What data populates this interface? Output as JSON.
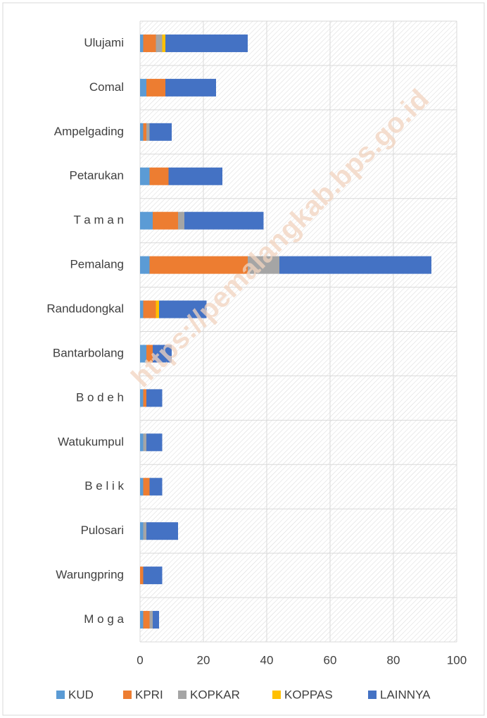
{
  "chart_data": {
    "type": "bar",
    "orientation": "horizontal",
    "stacked": true,
    "categories": [
      "Ulujami",
      "Comal",
      "Ampelgading",
      "Petarukan",
      "T a m a n",
      "Pemalang",
      "Randudongkal",
      "Bantarbolang",
      "B o d e h",
      "Watukumpul",
      "B e l i k",
      "Pulosari",
      "Warungpring",
      "M o g a"
    ],
    "series": [
      {
        "name": "KUD",
        "color": "#5b9bd5",
        "values": [
          1,
          2,
          1,
          3,
          4,
          3,
          1,
          2,
          1,
          1,
          1,
          1,
          0,
          1
        ]
      },
      {
        "name": "KPRI",
        "color": "#ed7d31",
        "values": [
          4,
          6,
          1,
          6,
          8,
          31,
          4,
          2,
          1,
          0,
          2,
          0,
          1,
          2
        ]
      },
      {
        "name": "KOPKAR",
        "color": "#a5a5a5",
        "values": [
          2,
          0,
          1,
          0,
          2,
          10,
          0,
          0,
          0,
          1,
          0,
          1,
          0,
          1
        ]
      },
      {
        "name": "KOPPAS",
        "color": "#ffc000",
        "values": [
          1,
          0,
          0,
          0,
          0,
          0,
          1,
          0,
          0,
          0,
          0,
          0,
          0,
          0
        ]
      },
      {
        "name": "LAINNYA",
        "color": "#4472c4",
        "values": [
          26,
          16,
          7,
          17,
          25,
          48,
          15,
          6,
          5,
          5,
          4,
          10,
          6,
          2
        ]
      }
    ],
    "xlim": [
      0,
      100
    ],
    "xticks": [
      0,
      20,
      40,
      60,
      80,
      100
    ],
    "grid": true,
    "legend": "bottom",
    "watermark": "https://pemalangkab.bps.go.id"
  }
}
